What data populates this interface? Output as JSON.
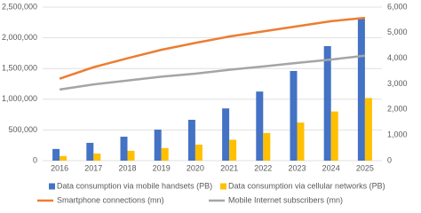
{
  "chart_data": {
    "type": "bar_line",
    "categories": [
      "2016",
      "2017",
      "2018",
      "2019",
      "2020",
      "2021",
      "2022",
      "2023",
      "2024",
      "2025"
    ],
    "series": [
      {
        "name": "Data consumption via mobile handsets (PB)",
        "color": "#4472c4",
        "kind": "bar",
        "values": [
          190000,
          290000,
          390000,
          505000,
          665000,
          850000,
          1125000,
          1460000,
          1865000,
          2330000
        ]
      },
      {
        "name": "Data consumption via cellular networks (PB)",
        "color": "#ffc000",
        "kind": "bar",
        "values": [
          75000,
          115000,
          160000,
          205000,
          260000,
          340000,
          450000,
          620000,
          800000,
          1020000
        ]
      },
      {
        "name": "Smartphone connections (mn)",
        "color": "#ed7d31",
        "kind": "line",
        "axis": "y2",
        "values": [
          3200,
          3650,
          4000,
          4330,
          4600,
          4850,
          5050,
          5250,
          5450,
          5580
        ]
      },
      {
        "name": "Mobile Internet subscribers (mn)",
        "color": "#a5a5a5",
        "kind": "line",
        "axis": "y2",
        "values": [
          2780,
          2980,
          3130,
          3280,
          3400,
          3550,
          3680,
          3820,
          3950,
          4100
        ]
      }
    ],
    "ylim": [
      0,
      2500000
    ],
    "yticks": [
      0,
      {
        "value": 500000,
        "label": "500,000"
      },
      {
        "value": 1000000,
        "label": "1,000,000"
      },
      {
        "value": 1500000,
        "label": "1,500,000"
      },
      {
        "value": 2000000,
        "label": "2,000,000"
      },
      {
        "value": 2500000,
        "label": "2,500,000"
      }
    ],
    "y2lim": [
      0,
      6000
    ],
    "y2ticks": [
      0,
      {
        "value": 1000,
        "label": "1,000"
      },
      {
        "value": 2000,
        "label": "2,000"
      },
      {
        "value": 3000,
        "label": "3,000"
      },
      {
        "value": 4000,
        "label": "4,000"
      },
      {
        "value": 5000,
        "label": "5,000"
      },
      {
        "value": 6000,
        "label": "6,000"
      }
    ],
    "grid": true
  }
}
